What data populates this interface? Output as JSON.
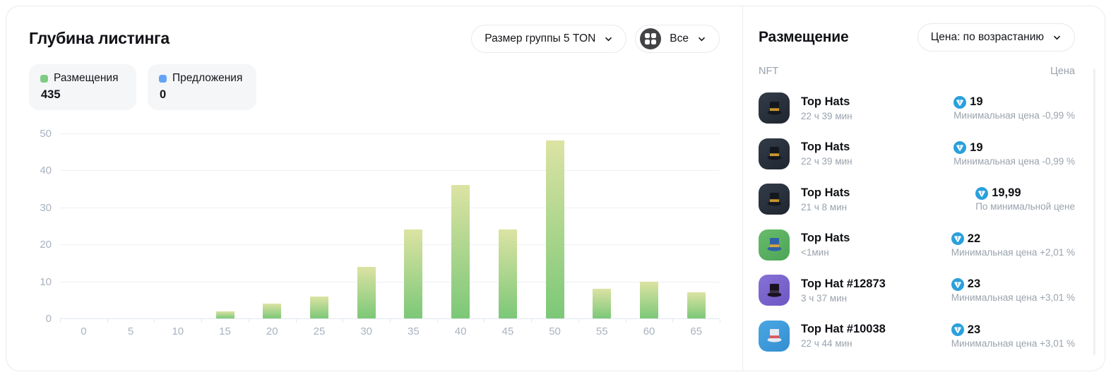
{
  "chart_panel": {
    "title": "Глубина листинга",
    "group_size_label": "Размер группы 5 TON",
    "filter_label": "Все",
    "legend": [
      {
        "label": "Размещения",
        "value": "435",
        "color": "#7ecb83",
        "dot_style": "background:#7ecb83"
      },
      {
        "label": "Предложения",
        "value": "0",
        "color": "#64a3f7",
        "dot_style": "background:#64a3f7"
      }
    ]
  },
  "chart_data": {
    "type": "bar",
    "title": "Глубина листинга",
    "categories": [
      "0",
      "5",
      "10",
      "15",
      "20",
      "25",
      "30",
      "35",
      "40",
      "45",
      "50",
      "55",
      "60",
      "65"
    ],
    "series": [
      {
        "name": "Размещения",
        "values": [
          0,
          0,
          0,
          2,
          4,
          6,
          14,
          24,
          36,
          24,
          48,
          8,
          10,
          7
        ],
        "gradient_top": "#dce3a3",
        "gradient_bottom": "#7cc878"
      },
      {
        "name": "Предложения",
        "values": [
          0,
          0,
          0,
          0,
          0,
          0,
          0,
          0,
          0,
          0,
          0,
          0,
          0,
          0
        ],
        "color": "#64a3f7"
      }
    ],
    "xlabel": "",
    "ylabel": "",
    "ylim": [
      0,
      50
    ],
    "yticks": [
      0,
      10,
      20,
      30,
      40,
      50
    ],
    "grid": true,
    "legend_position": "top-left"
  },
  "listings": {
    "title": "Размещение",
    "sort_label": "Цена: по возрастанию",
    "columns": {
      "nft": "NFT",
      "price": "Цена"
    },
    "ton_color": "#2aa0dd",
    "items": [
      {
        "name": "Top Hats",
        "time": "22 ч 39 мин",
        "price": "19",
        "note": "Минимальная цена -0,99 %",
        "thumb_style": "background:linear-gradient(145deg,#323c49,#1f2630);--hat:#14171e;--band:#c9962f"
      },
      {
        "name": "Top Hats",
        "time": "22 ч 39 мин",
        "price": "19",
        "note": "Минимальная цена -0,99 %",
        "thumb_style": "background:linear-gradient(145deg,#323c49,#1f2630);--hat:#14171e;--band:#c9962f"
      },
      {
        "name": "Top Hats",
        "time": "21 ч 8 мин",
        "price": "19,99",
        "note": "По минимальной цене",
        "thumb_style": "background:linear-gradient(145deg,#323c49,#1f2630);--hat:#14171e;--band:#c9962f"
      },
      {
        "name": "Top Hats",
        "time": "<1мин",
        "price": "22",
        "note": "Минимальная цена +2,01 %",
        "thumb_style": "background:linear-gradient(145deg,#68bd6b,#4da457);--hat:#2f62a6;--band:#d9a53e"
      },
      {
        "name": "Top Hat #12873",
        "time": "3 ч 37 мин",
        "price": "23",
        "note": "Минимальная цена +3,01 %",
        "thumb_style": "background:linear-gradient(145deg,#8672d6,#6e56c3);--hat:#191320;--band:#3a2f47"
      },
      {
        "name": "Top Hat #10038",
        "time": "22 ч 44 мин",
        "price": "23",
        "note": "Минимальная цена +3,01 %",
        "thumb_style": "background:linear-gradient(145deg,#4aa6e2,#348fd2);--hat:#e3eaf3;--band:#d85560"
      }
    ]
  }
}
